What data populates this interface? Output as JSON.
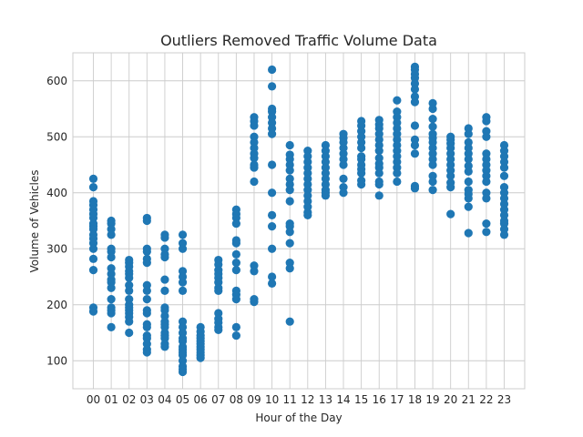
{
  "chart_data": {
    "type": "scatter",
    "title": "Outliers Removed Traffic Volume Data",
    "xlabel": "Hour of the Day",
    "ylabel": "Volume of Vehicles",
    "categories": [
      "00",
      "01",
      "02",
      "03",
      "04",
      "05",
      "06",
      "07",
      "08",
      "09",
      "10",
      "11",
      "12",
      "13",
      "14",
      "15",
      "16",
      "17",
      "18",
      "19",
      "20",
      "21",
      "22",
      "23"
    ],
    "ylim": [
      50,
      650
    ],
    "yticks": [
      100,
      200,
      300,
      400,
      500,
      600
    ],
    "grid": true,
    "marker_color": "#1f77b4",
    "points": [
      [
        425,
        410,
        385,
        378,
        370,
        362,
        355,
        345,
        340,
        335,
        325,
        318,
        310,
        300,
        282,
        262,
        195,
        188
      ],
      [
        350,
        345,
        335,
        325,
        300,
        295,
        285,
        265,
        255,
        245,
        240,
        230,
        210,
        195,
        190,
        185,
        160
      ],
      [
        280,
        275,
        268,
        260,
        255,
        248,
        235,
        225,
        210,
        200,
        195,
        190,
        185,
        178,
        170,
        150
      ],
      [
        355,
        350,
        300,
        295,
        282,
        275,
        235,
        225,
        210,
        190,
        185,
        165,
        160,
        145,
        140,
        130,
        120,
        115
      ],
      [
        325,
        320,
        300,
        290,
        285,
        245,
        225,
        195,
        190,
        180,
        170,
        165,
        160,
        150,
        145,
        140,
        130,
        125
      ],
      [
        325,
        310,
        300,
        260,
        250,
        240,
        225,
        170,
        160,
        150,
        140,
        135,
        125,
        120,
        115,
        110,
        100,
        90,
        85,
        80
      ],
      [
        160,
        152,
        145,
        140,
        135,
        130,
        125,
        120,
        115,
        110,
        105
      ],
      [
        280,
        272,
        262,
        255,
        248,
        240,
        230,
        225,
        185,
        175,
        168,
        160,
        155
      ],
      [
        370,
        362,
        355,
        345,
        315,
        310,
        290,
        275,
        262,
        225,
        218,
        210,
        160,
        145
      ],
      [
        535,
        528,
        520,
        500,
        490,
        480,
        470,
        462,
        450,
        445,
        420,
        270,
        260,
        210,
        205
      ],
      [
        620,
        590,
        550,
        545,
        535,
        525,
        515,
        505,
        450,
        400,
        360,
        340,
        300,
        250,
        238
      ],
      [
        485,
        468,
        460,
        450,
        440,
        425,
        415,
        405,
        385,
        345,
        340,
        330,
        310,
        275,
        265,
        170
      ],
      [
        475,
        465,
        455,
        445,
        435,
        425,
        415,
        405,
        395,
        385,
        375,
        365,
        360
      ],
      [
        485,
        475,
        465,
        455,
        445,
        435,
        425,
        415,
        405,
        400,
        395
      ],
      [
        505,
        498,
        490,
        480,
        470,
        460,
        450,
        425,
        410,
        400
      ],
      [
        528,
        520,
        510,
        500,
        490,
        480,
        465,
        460,
        450,
        442,
        435,
        422,
        415
      ],
      [
        530,
        522,
        515,
        505,
        495,
        485,
        475,
        462,
        452,
        445,
        435,
        420,
        415,
        395
      ],
      [
        565,
        545,
        535,
        525,
        515,
        505,
        495,
        485,
        475,
        465,
        455,
        445,
        435,
        420
      ],
      [
        625,
        620,
        612,
        605,
        595,
        585,
        572,
        562,
        520,
        495,
        485,
        470,
        412,
        408
      ],
      [
        560,
        550,
        532,
        518,
        505,
        498,
        490,
        480,
        470,
        460,
        450,
        430,
        420,
        405
      ],
      [
        500,
        495,
        488,
        480,
        470,
        460,
        450,
        440,
        430,
        418,
        410,
        362
      ],
      [
        515,
        505,
        490,
        480,
        470,
        460,
        448,
        438,
        420,
        405,
        398,
        390,
        375,
        328
      ],
      [
        535,
        528,
        510,
        500,
        470,
        460,
        450,
        440,
        430,
        420,
        400,
        390,
        345,
        330
      ],
      [
        485,
        475,
        465,
        455,
        445,
        430,
        410,
        400,
        390,
        380,
        370,
        360,
        350,
        345,
        335,
        325
      ]
    ]
  }
}
